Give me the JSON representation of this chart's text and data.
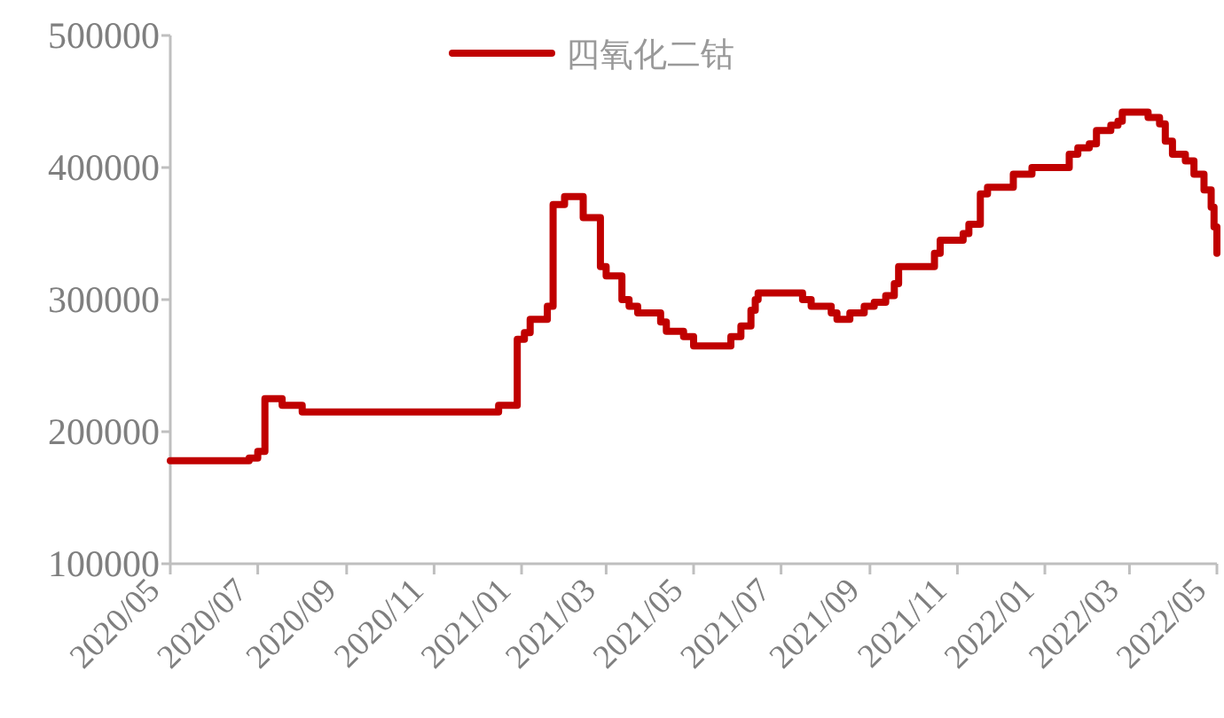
{
  "chart_data": {
    "type": "step",
    "legend": "top",
    "marker": "none",
    "line_style": "solid",
    "grid": false,
    "xlim": [
      "2020-05",
      "2022-05"
    ],
    "xticks": [
      {
        "value": "2020-05",
        "label": "2020/05"
      },
      {
        "value": "2020-07",
        "label": "2020/07"
      },
      {
        "value": "2020-09",
        "label": "2020/09"
      },
      {
        "value": "2020-11",
        "label": "2020/11"
      },
      {
        "value": "2021-01",
        "label": "2021/01"
      },
      {
        "value": "2021-03",
        "label": "2021/03"
      },
      {
        "value": "2021-05",
        "label": "2021/05"
      },
      {
        "value": "2021-07",
        "label": "2021/07"
      },
      {
        "value": "2021-09",
        "label": "2021/09"
      },
      {
        "value": "2021-11",
        "label": "2021/11"
      },
      {
        "value": "2022-01",
        "label": "2022/01"
      },
      {
        "value": "2022-03",
        "label": "2022/03"
      },
      {
        "value": "2022-05",
        "label": "2022/05"
      }
    ],
    "ylim": [
      100000,
      500000
    ],
    "yticks": [
      100000,
      200000,
      300000,
      400000,
      500000
    ],
    "x": [
      "2020-05-01",
      "2020-06-16",
      "2020-06-25",
      "2020-07-01",
      "2020-07-06",
      "2020-07-18",
      "2020-08-01",
      "2020-12-07",
      "2020-12-16",
      "2020-12-29",
      "2021-01-03",
      "2021-01-07",
      "2021-01-19",
      "2021-01-23",
      "2021-01-31",
      "2021-02-10",
      "2021-02-13",
      "2021-02-21",
      "2021-02-25",
      "2021-03-01",
      "2021-03-12",
      "2021-03-17",
      "2021-03-23",
      "2021-04-08",
      "2021-04-12",
      "2021-04-24",
      "2021-05-01",
      "2021-05-23",
      "2021-05-27",
      "2021-06-03",
      "2021-06-10",
      "2021-06-13",
      "2021-06-15",
      "2021-07-10",
      "2021-07-16",
      "2021-07-22",
      "2021-08-05",
      "2021-08-09",
      "2021-08-18",
      "2021-08-28",
      "2021-09-04",
      "2021-09-12",
      "2021-09-18",
      "2021-09-21",
      "2021-10-03",
      "2021-10-16",
      "2021-10-20",
      "2021-10-31",
      "2021-11-05",
      "2021-11-09",
      "2021-11-17",
      "2021-11-22",
      "2021-12-06",
      "2021-12-10",
      "2021-12-23",
      "2022-01-14",
      "2022-01-18",
      "2022-01-24",
      "2022-02-01",
      "2022-02-06",
      "2022-02-16",
      "2022-02-21",
      "2022-02-24",
      "2022-03-08",
      "2022-03-14",
      "2022-03-22",
      "2022-03-26",
      "2022-03-31",
      "2022-04-09",
      "2022-04-15",
      "2022-04-22",
      "2022-04-27",
      "2022-04-29",
      "2022-05-01"
    ],
    "series": [
      {
        "name": "四氧化二钴",
        "color": "#c00000",
        "values": [
          178000,
          178000,
          180000,
          185000,
          225000,
          220000,
          215000,
          215000,
          220000,
          270000,
          275000,
          285000,
          295000,
          372000,
          378000,
          378000,
          362000,
          362000,
          325000,
          318000,
          300000,
          295000,
          290000,
          283000,
          276000,
          272000,
          265000,
          265000,
          272000,
          280000,
          292000,
          300000,
          305000,
          305000,
          300000,
          295000,
          290000,
          285000,
          290000,
          295000,
          298000,
          303000,
          312000,
          325000,
          325000,
          335000,
          345000,
          345000,
          350000,
          357000,
          380000,
          385000,
          385000,
          395000,
          400000,
          400000,
          410000,
          415000,
          418000,
          428000,
          432000,
          435000,
          442000,
          442000,
          438000,
          433000,
          420000,
          410000,
          405000,
          395000,
          383000,
          370000,
          355000,
          335000
        ]
      }
    ]
  }
}
